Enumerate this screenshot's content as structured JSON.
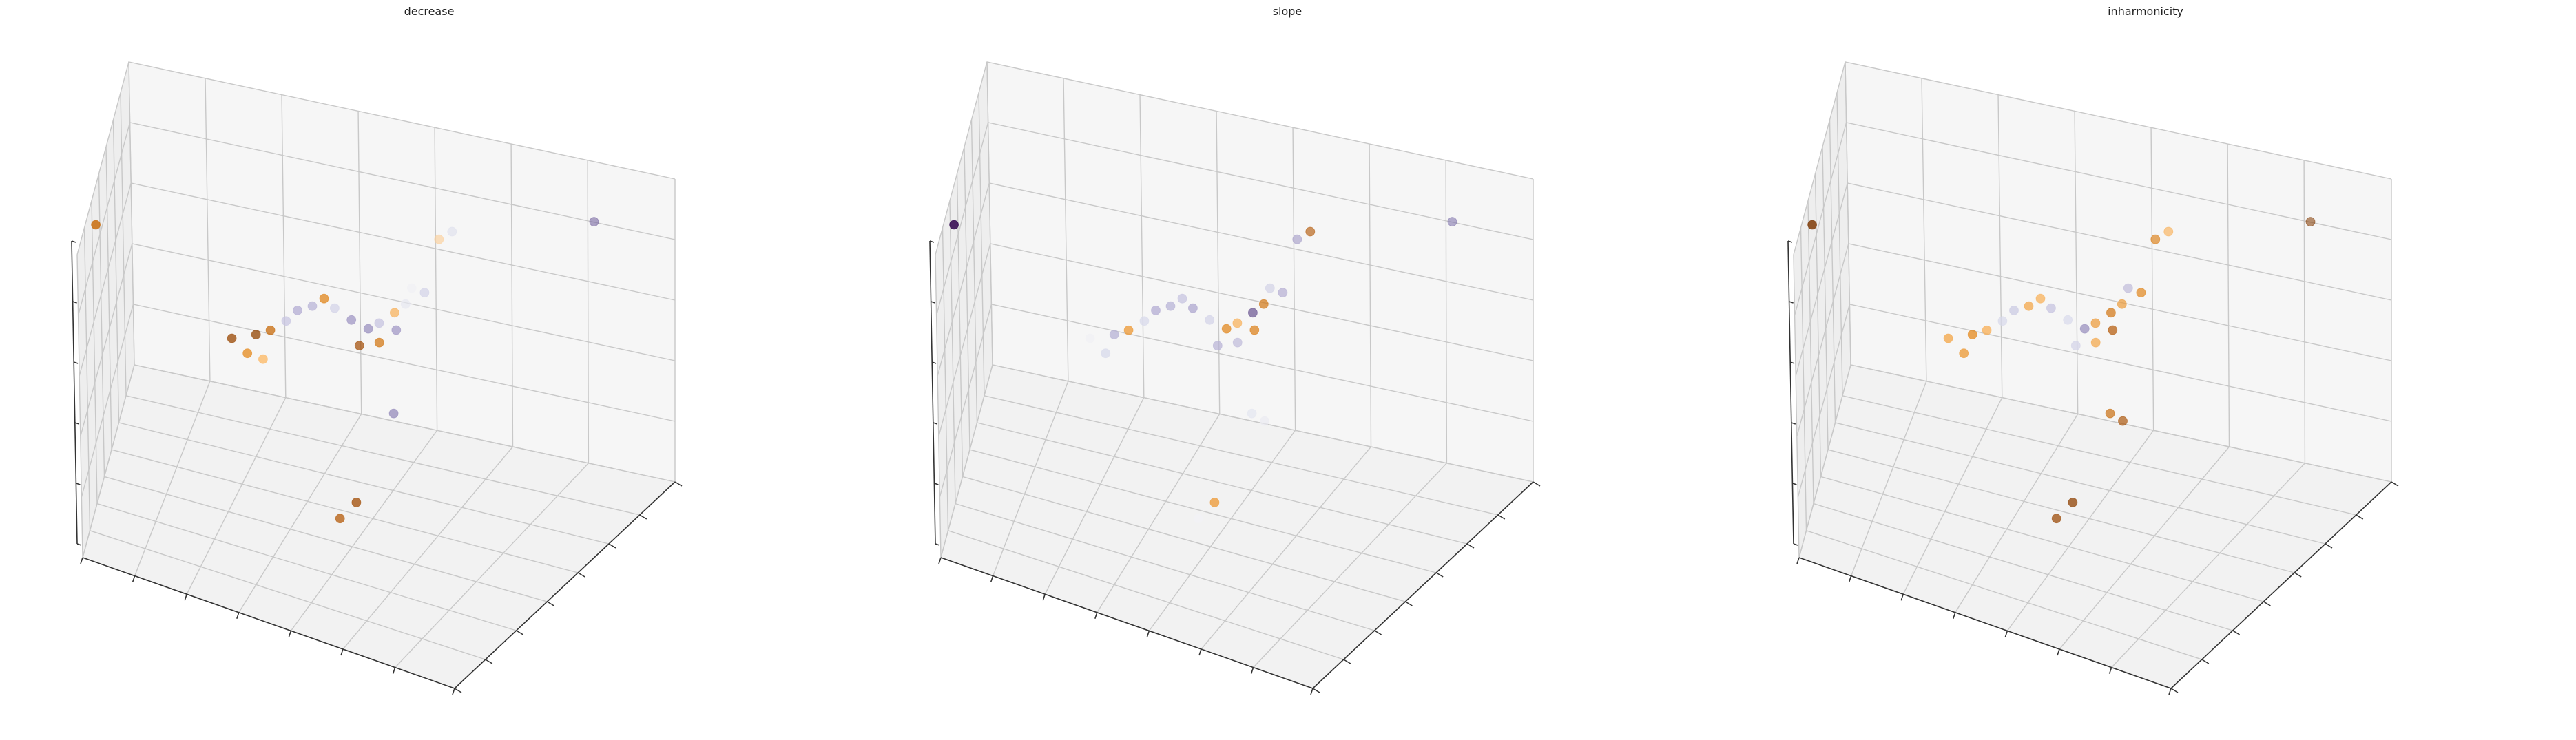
{
  "chart_data": [
    {
      "type": "scatter3d",
      "title": "decrease",
      "colormap": "PuOr",
      "grid": true,
      "xlim": [
        0,
        1
      ],
      "ylim": [
        0,
        1
      ],
      "zlim": [
        0,
        1
      ],
      "points": [
        {
          "x": 0.35,
          "y": 0.41,
          "z": 0.62,
          "c": 0.06
        },
        {
          "x": 0.38,
          "y": 0.42,
          "z": 0.64,
          "c": 0.22
        },
        {
          "x": 0.41,
          "y": 0.44,
          "z": 0.67,
          "c": 0.65
        },
        {
          "x": 0.43,
          "y": 0.46,
          "z": 0.7,
          "c": 0.72
        },
        {
          "x": 0.46,
          "y": 0.47,
          "z": 0.72,
          "c": 0.7
        },
        {
          "x": 0.48,
          "y": 0.49,
          "z": 0.74,
          "c": 0.3
        },
        {
          "x": 0.5,
          "y": 0.5,
          "z": 0.71,
          "c": 0.62
        },
        {
          "x": 0.53,
          "y": 0.52,
          "z": 0.67,
          "c": 0.78
        },
        {
          "x": 0.56,
          "y": 0.54,
          "z": 0.64,
          "c": 0.8
        },
        {
          "x": 0.58,
          "y": 0.55,
          "z": 0.66,
          "c": 0.66
        },
        {
          "x": 0.61,
          "y": 0.56,
          "z": 0.7,
          "c": 0.4
        },
        {
          "x": 0.63,
          "y": 0.57,
          "z": 0.73,
          "c": 0.55
        },
        {
          "x": 0.64,
          "y": 0.58,
          "z": 0.78,
          "c": 0.52
        },
        {
          "x": 0.66,
          "y": 0.6,
          "z": 0.76,
          "c": 0.62
        },
        {
          "x": 0.59,
          "y": 0.52,
          "z": 0.62,
          "c": 0.25
        },
        {
          "x": 0.62,
          "y": 0.54,
          "z": 0.66,
          "c": 0.78
        },
        {
          "x": 0.55,
          "y": 0.51,
          "z": 0.6,
          "c": 0.1
        },
        {
          "x": 0.33,
          "y": 0.41,
          "z": 0.55,
          "c": 0.32
        },
        {
          "x": 0.36,
          "y": 0.43,
          "z": 0.53,
          "c": 0.42
        },
        {
          "x": 0.3,
          "y": 0.39,
          "z": 0.6,
          "c": 0.08
        },
        {
          "x": 0.67,
          "y": 0.66,
          "z": 0.9,
          "c": 0.45
        },
        {
          "x": 0.69,
          "y": 0.68,
          "z": 0.92,
          "c": 0.58
        },
        {
          "x": 0.92,
          "y": 0.82,
          "z": 0.95,
          "c": 0.88
        },
        {
          "x": 0.6,
          "y": 0.58,
          "z": 0.35,
          "c": 0.82
        },
        {
          "x": 0.02,
          "y": 0.2,
          "z": 0.98,
          "c": 0.22
        },
        {
          "x": 0.52,
          "y": 0.46,
          "z": 0.05,
          "c": 0.15
        },
        {
          "x": 0.57,
          "y": 0.42,
          "z": 0.15,
          "c": 0.1
        }
      ]
    },
    {
      "type": "scatter3d",
      "title": "slope",
      "colormap": "PuOr",
      "grid": true,
      "xlim": [
        0,
        1
      ],
      "ylim": [
        0,
        1
      ],
      "zlim": [
        0,
        1
      ],
      "points": [
        {
          "x": 0.35,
          "y": 0.41,
          "z": 0.62,
          "c": 0.7
        },
        {
          "x": 0.38,
          "y": 0.42,
          "z": 0.64,
          "c": 0.35
        },
        {
          "x": 0.41,
          "y": 0.44,
          "z": 0.67,
          "c": 0.6
        },
        {
          "x": 0.43,
          "y": 0.46,
          "z": 0.7,
          "c": 0.72
        },
        {
          "x": 0.46,
          "y": 0.47,
          "z": 0.72,
          "c": 0.7
        },
        {
          "x": 0.48,
          "y": 0.49,
          "z": 0.74,
          "c": 0.66
        },
        {
          "x": 0.5,
          "y": 0.5,
          "z": 0.71,
          "c": 0.74
        },
        {
          "x": 0.53,
          "y": 0.52,
          "z": 0.67,
          "c": 0.62
        },
        {
          "x": 0.56,
          "y": 0.54,
          "z": 0.64,
          "c": 0.3
        },
        {
          "x": 0.58,
          "y": 0.55,
          "z": 0.66,
          "c": 0.4
        },
        {
          "x": 0.61,
          "y": 0.56,
          "z": 0.7,
          "c": 0.9
        },
        {
          "x": 0.63,
          "y": 0.57,
          "z": 0.73,
          "c": 0.25
        },
        {
          "x": 0.64,
          "y": 0.58,
          "z": 0.78,
          "c": 0.62
        },
        {
          "x": 0.66,
          "y": 0.6,
          "z": 0.76,
          "c": 0.72
        },
        {
          "x": 0.59,
          "y": 0.52,
          "z": 0.62,
          "c": 0.68
        },
        {
          "x": 0.62,
          "y": 0.54,
          "z": 0.66,
          "c": 0.28
        },
        {
          "x": 0.55,
          "y": 0.51,
          "z": 0.6,
          "c": 0.7
        },
        {
          "x": 0.33,
          "y": 0.41,
          "z": 0.55,
          "c": 0.6
        },
        {
          "x": 0.3,
          "y": 0.39,
          "z": 0.6,
          "c": 0.52
        },
        {
          "x": 0.67,
          "y": 0.66,
          "z": 0.9,
          "c": 0.75
        },
        {
          "x": 0.69,
          "y": 0.68,
          "z": 0.92,
          "c": 0.15
        },
        {
          "x": 0.92,
          "y": 0.82,
          "z": 0.95,
          "c": 0.86
        },
        {
          "x": 0.6,
          "y": 0.58,
          "z": 0.35,
          "c": 0.56
        },
        {
          "x": 0.62,
          "y": 0.6,
          "z": 0.32,
          "c": 0.54
        },
        {
          "x": 0.02,
          "y": 0.2,
          "z": 0.98,
          "c": 1.0
        },
        {
          "x": 0.52,
          "y": 0.46,
          "z": 0.05,
          "c": 0.52
        },
        {
          "x": 0.57,
          "y": 0.42,
          "z": 0.15,
          "c": 0.35
        }
      ]
    },
    {
      "type": "scatter3d",
      "title": "inharmonicity",
      "colormap": "PuOr",
      "grid": true,
      "xlim": [
        0,
        1
      ],
      "ylim": [
        0,
        1
      ],
      "zlim": [
        0,
        1
      ],
      "points": [
        {
          "x": 0.35,
          "y": 0.41,
          "z": 0.62,
          "c": 0.32
        },
        {
          "x": 0.38,
          "y": 0.42,
          "z": 0.64,
          "c": 0.4
        },
        {
          "x": 0.41,
          "y": 0.44,
          "z": 0.67,
          "c": 0.6
        },
        {
          "x": 0.43,
          "y": 0.46,
          "z": 0.7,
          "c": 0.64
        },
        {
          "x": 0.46,
          "y": 0.47,
          "z": 0.72,
          "c": 0.38
        },
        {
          "x": 0.48,
          "y": 0.49,
          "z": 0.74,
          "c": 0.4
        },
        {
          "x": 0.5,
          "y": 0.5,
          "z": 0.71,
          "c": 0.66
        },
        {
          "x": 0.53,
          "y": 0.52,
          "z": 0.67,
          "c": 0.6
        },
        {
          "x": 0.56,
          "y": 0.54,
          "z": 0.64,
          "c": 0.8
        },
        {
          "x": 0.58,
          "y": 0.55,
          "z": 0.66,
          "c": 0.35
        },
        {
          "x": 0.61,
          "y": 0.56,
          "z": 0.7,
          "c": 0.25
        },
        {
          "x": 0.63,
          "y": 0.57,
          "z": 0.73,
          "c": 0.35
        },
        {
          "x": 0.64,
          "y": 0.58,
          "z": 0.78,
          "c": 0.68
        },
        {
          "x": 0.66,
          "y": 0.6,
          "z": 0.76,
          "c": 0.3
        },
        {
          "x": 0.59,
          "y": 0.52,
          "z": 0.62,
          "c": 0.38
        },
        {
          "x": 0.62,
          "y": 0.54,
          "z": 0.66,
          "c": 0.15
        },
        {
          "x": 0.55,
          "y": 0.51,
          "z": 0.6,
          "c": 0.62
        },
        {
          "x": 0.33,
          "y": 0.41,
          "z": 0.55,
          "c": 0.35
        },
        {
          "x": 0.3,
          "y": 0.39,
          "z": 0.6,
          "c": 0.38
        },
        {
          "x": 0.67,
          "y": 0.66,
          "z": 0.9,
          "c": 0.28
        },
        {
          "x": 0.69,
          "y": 0.68,
          "z": 0.92,
          "c": 0.4
        },
        {
          "x": 0.92,
          "y": 0.82,
          "z": 0.95,
          "c": 0.02
        },
        {
          "x": 0.6,
          "y": 0.58,
          "z": 0.35,
          "c": 0.22
        },
        {
          "x": 0.62,
          "y": 0.6,
          "z": 0.32,
          "c": 0.12
        },
        {
          "x": 0.02,
          "y": 0.2,
          "z": 0.98,
          "c": 0.0
        },
        {
          "x": 0.52,
          "y": 0.46,
          "z": 0.05,
          "c": 0.08
        },
        {
          "x": 0.57,
          "y": 0.42,
          "z": 0.15,
          "c": 0.05
        }
      ]
    }
  ]
}
